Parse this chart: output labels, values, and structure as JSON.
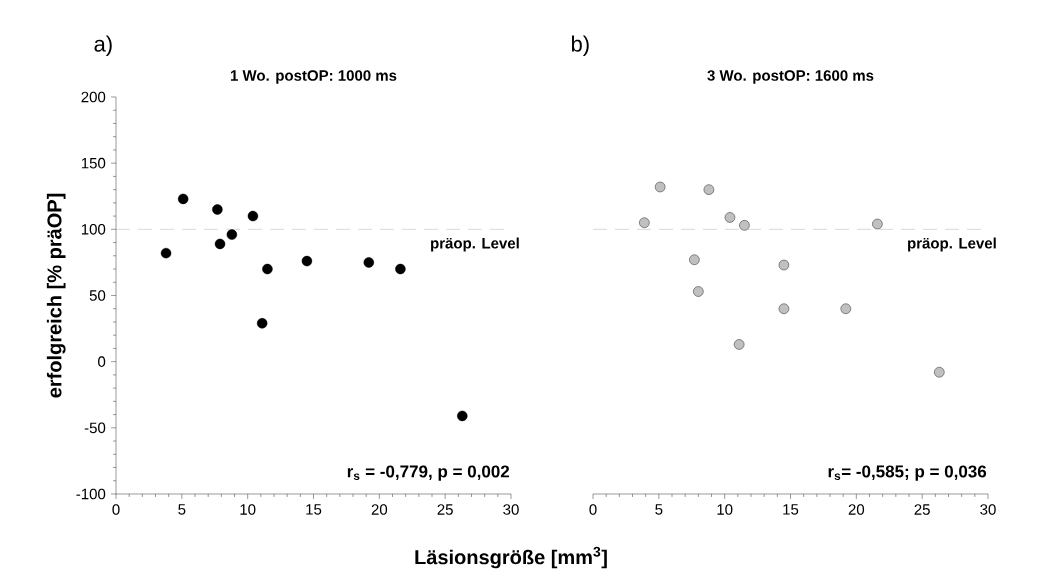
{
  "chart_data": [
    {
      "type": "scatter",
      "title": "1 Wo. postOP: 1000 ms",
      "ylabel": "erfolgreich [% präOP]",
      "xlabel": "Läsionsgröße [mm$^{3}$]",
      "x": [
        3.8,
        5.1,
        7.7,
        7.9,
        8.8,
        10.4,
        11.1,
        11.5,
        14.5,
        19.2,
        21.6,
        26.3
      ],
      "values": [
        82,
        123,
        115,
        89,
        96,
        110,
        29,
        70,
        76,
        75,
        70,
        -41
      ],
      "color": "#000000",
      "xlim": [
        0,
        30
      ],
      "xticks": [
        0,
        5,
        10,
        15,
        20,
        25,
        30
      ],
      "ylim": [
        -100,
        200
      ],
      "yticks": [
        -100,
        -50,
        0,
        50,
        100,
        150,
        200
      ],
      "ref_lines": [
        {
          "axis": "y",
          "value": 100,
          "label": "präop. Level",
          "color": "#a0a0a0",
          "line_style": "dashed"
        }
      ],
      "annotations": [
        "a)",
        "r$_{s}$ = -0,779, p = 0,002"
      ]
    },
    {
      "type": "scatter",
      "title": "3 Wo. postOP: 1600 ms",
      "x": [
        3.9,
        5.1,
        8.8,
        10.4,
        11.5,
        21.6,
        7.7,
        14.5,
        8.0,
        14.5,
        19.2,
        11.1,
        26.3
      ],
      "values": [
        105,
        132,
        130,
        109,
        103,
        104,
        77,
        73,
        53,
        40,
        40,
        13,
        -8
      ],
      "color": "#c0c0c0",
      "xlim": [
        0,
        30
      ],
      "xticks": [
        0,
        5,
        10,
        15,
        20,
        25,
        30
      ],
      "ylim": [
        -100,
        200
      ],
      "tick_labels": "x",
      "ref_lines": [
        {
          "axis": "y",
          "value": 100,
          "label": "präop. Level",
          "color": "#a0a0a0",
          "line_style": "dashed"
        }
      ],
      "annotations": [
        "b)",
        "r$_{s}$= -0,585; p = 0,036"
      ]
    }
  ]
}
